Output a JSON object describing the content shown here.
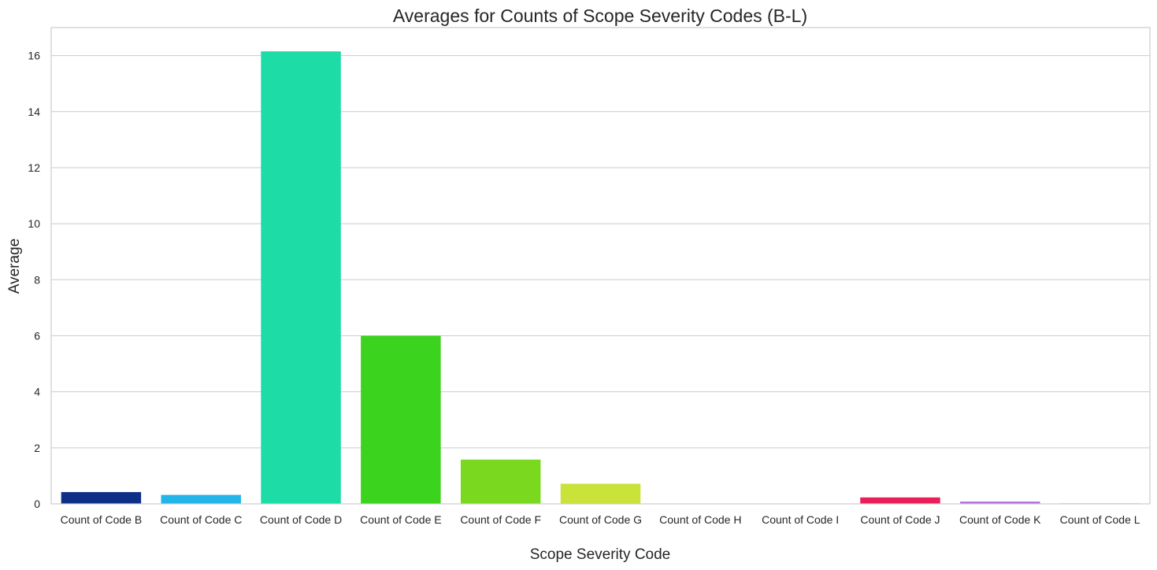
{
  "chart_data": {
    "type": "bar",
    "title": "Averages for Counts of Scope Severity Codes (B-L)",
    "xlabel": "Scope Severity Code",
    "ylabel": "Average",
    "ylim": [
      0,
      17
    ],
    "yticks": [
      0,
      2,
      4,
      6,
      8,
      10,
      12,
      14,
      16
    ],
    "grid": "horizontal",
    "categories": [
      "Count of Code B",
      "Count of Code C",
      "Count of Code D",
      "Count of Code E",
      "Count of Code F",
      "Count of Code G",
      "Count of Code H",
      "Count of Code I",
      "Count of Code J",
      "Count of Code K",
      "Count of Code L"
    ],
    "values": [
      0.42,
      0.32,
      16.15,
      6.0,
      1.58,
      0.72,
      0.0,
      0.0,
      0.23,
      0.08,
      0.02
    ],
    "colors": [
      "#0e2f87",
      "#22b5e8",
      "#1edca6",
      "#3bd31d",
      "#7ad91f",
      "#c9e33a",
      "#e6b31e",
      "#e87818",
      "#ea1e5a",
      "#b06de0",
      "#d9a0e8"
    ]
  }
}
